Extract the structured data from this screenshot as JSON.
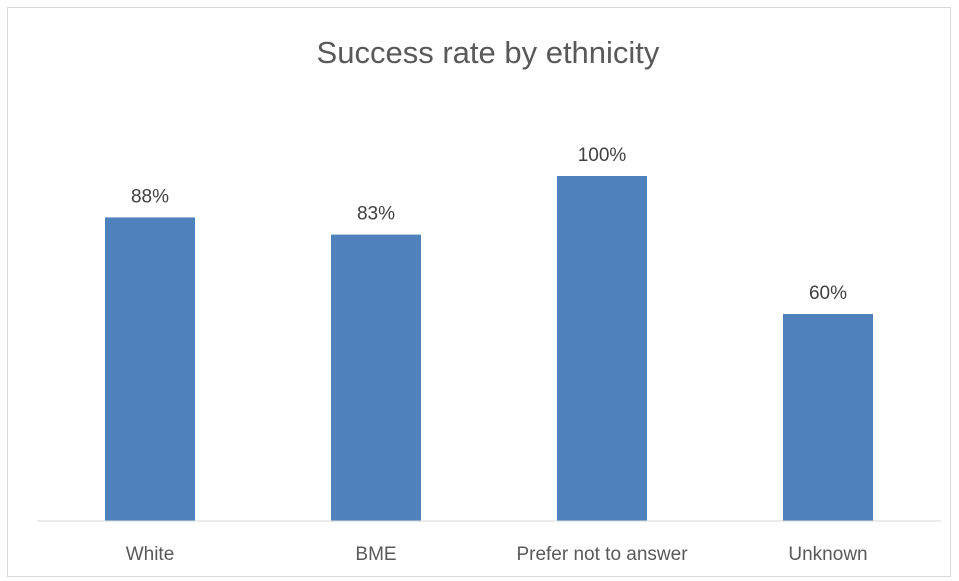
{
  "chart_data": {
    "type": "bar",
    "title": "Success rate by ethnicity",
    "categories": [
      "White",
      "BME",
      "Prefer not to answer",
      "Unknown"
    ],
    "values": [
      88,
      83,
      100,
      60
    ],
    "value_labels": [
      "88%",
      "83%",
      "100%",
      "60%"
    ],
    "value_unit": "percent",
    "ylim": [
      0,
      100
    ],
    "grid": false,
    "legend": "none",
    "colors": {
      "bar": "#4f81bd",
      "axis": "#d9d9d9",
      "frame": "#d9d9d9"
    }
  }
}
